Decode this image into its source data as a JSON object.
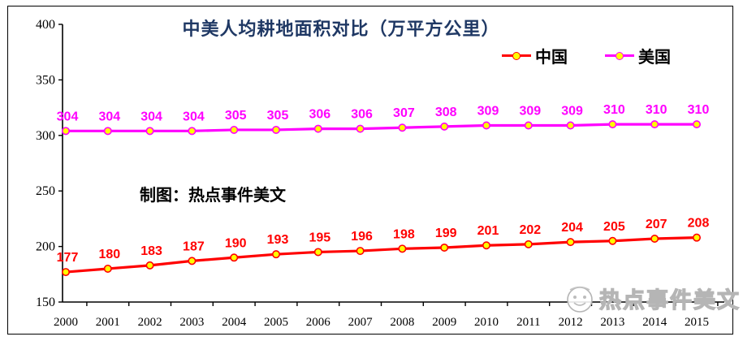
{
  "title": "中美人均耕地面积对比（万平方公里）",
  "annotation": "制图：热点事件美文",
  "watermark": "热点事件美文",
  "colors": {
    "title": "#1F3864",
    "china_line": "#FF0000",
    "usa_line": "#FF00FF",
    "marker_fill": "#FFFF00",
    "axis": "#000000",
    "watermark": "#b5b5b5"
  },
  "chart_data": {
    "type": "line",
    "categories": [
      "2000",
      "2001",
      "2002",
      "2003",
      "2004",
      "2005",
      "2006",
      "2007",
      "2008",
      "2009",
      "2010",
      "2011",
      "2012",
      "2013",
      "2014",
      "2015"
    ],
    "series": [
      {
        "name": "中国",
        "color": "#FF0000",
        "values": [
          177,
          180,
          183,
          187,
          190,
          193,
          195,
          196,
          198,
          199,
          201,
          202,
          204,
          205,
          207,
          208
        ]
      },
      {
        "name": "美国",
        "color": "#FF00FF",
        "values": [
          304,
          304,
          304,
          304,
          305,
          305,
          306,
          306,
          307,
          308,
          309,
          309,
          309,
          310,
          310,
          310
        ]
      }
    ],
    "title": "中美人均耕地面积对比（万平方公里）",
    "xlabel": "",
    "ylabel": "",
    "ylim": [
      150,
      400
    ],
    "yticks": [
      150,
      200,
      250,
      300,
      350,
      400
    ],
    "grid": false,
    "legend_position": "top-right",
    "marker": "circle-yellow",
    "data_labels": true
  }
}
